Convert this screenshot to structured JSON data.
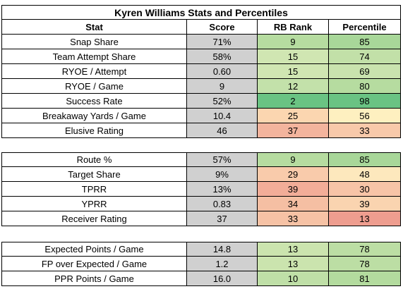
{
  "title": "Kyren Williams Stats and Percentiles",
  "headers": [
    "Stat",
    "Score",
    "RB Rank",
    "Percentile"
  ],
  "sections": [
    [
      {
        "stat": "Snap Share",
        "score": "71%",
        "rank": "9",
        "pct": "85",
        "rank_color": "#b6dca0",
        "pct_color": "#a8d799"
      },
      {
        "stat": "Team Attempt Share",
        "score": "58%",
        "rank": "15",
        "pct": "74",
        "rank_color": "#d0e6b2",
        "pct_color": "#c2e0a8"
      },
      {
        "stat": "RYOE / Attempt",
        "score": "0.60",
        "rank": "15",
        "pct": "69",
        "rank_color": "#d0e6b2",
        "pct_color": "#c9e3ae"
      },
      {
        "stat": "RYOE / Game",
        "score": "9",
        "rank": "12",
        "pct": "80",
        "rank_color": "#c3e1aa",
        "pct_color": "#b6dca0"
      },
      {
        "stat": "Success Rate",
        "score": "52%",
        "rank": "2",
        "pct": "98",
        "rank_color": "#6ac383",
        "pct_color": "#6ac383"
      },
      {
        "stat": "Breakaway Yards / Game",
        "score": "10.4",
        "rank": "25",
        "pct": "56",
        "rank_color": "#fbd6b0",
        "pct_color": "#fef0c0"
      },
      {
        "stat": "Elusive Rating",
        "score": "46",
        "rank": "37",
        "pct": "33",
        "rank_color": "#f3b49d",
        "pct_color": "#f8c9aa"
      }
    ],
    [
      {
        "stat": "Route %",
        "score": "57%",
        "rank": "9",
        "pct": "85",
        "rank_color": "#b6dca0",
        "pct_color": "#a8d799"
      },
      {
        "stat": "Target Share",
        "score": "9%",
        "rank": "29",
        "pct": "48",
        "rank_color": "#f9cbab",
        "pct_color": "#fde8bd"
      },
      {
        "stat": "TPRR",
        "score": "13%",
        "rank": "39",
        "pct": "30",
        "rank_color": "#f2ad98",
        "pct_color": "#f7c4a7"
      },
      {
        "stat": "YPRR",
        "score": "0.83",
        "rank": "34",
        "pct": "39",
        "rank_color": "#f5bfa3",
        "pct_color": "#fad4b0"
      },
      {
        "stat": "Receiver Rating",
        "score": "37",
        "rank": "33",
        "pct": "13",
        "rank_color": "#f6c2a5",
        "pct_color": "#ee9d8f"
      }
    ],
    [
      {
        "stat": "Expected Points / Game",
        "score": "14.8",
        "rank": "13",
        "pct": "78",
        "rank_color": "#cbe4ae",
        "pct_color": "#bcdea4"
      },
      {
        "stat": "FP over Expected / Game",
        "score": "1.2",
        "rank": "13",
        "pct": "78",
        "rank_color": "#cbe4ae",
        "pct_color": "#bcdea4"
      },
      {
        "stat": "PPR Points / Game",
        "score": "16.0",
        "rank": "10",
        "pct": "81",
        "rank_color": "#bfdfa7",
        "pct_color": "#b3db9e"
      }
    ]
  ]
}
